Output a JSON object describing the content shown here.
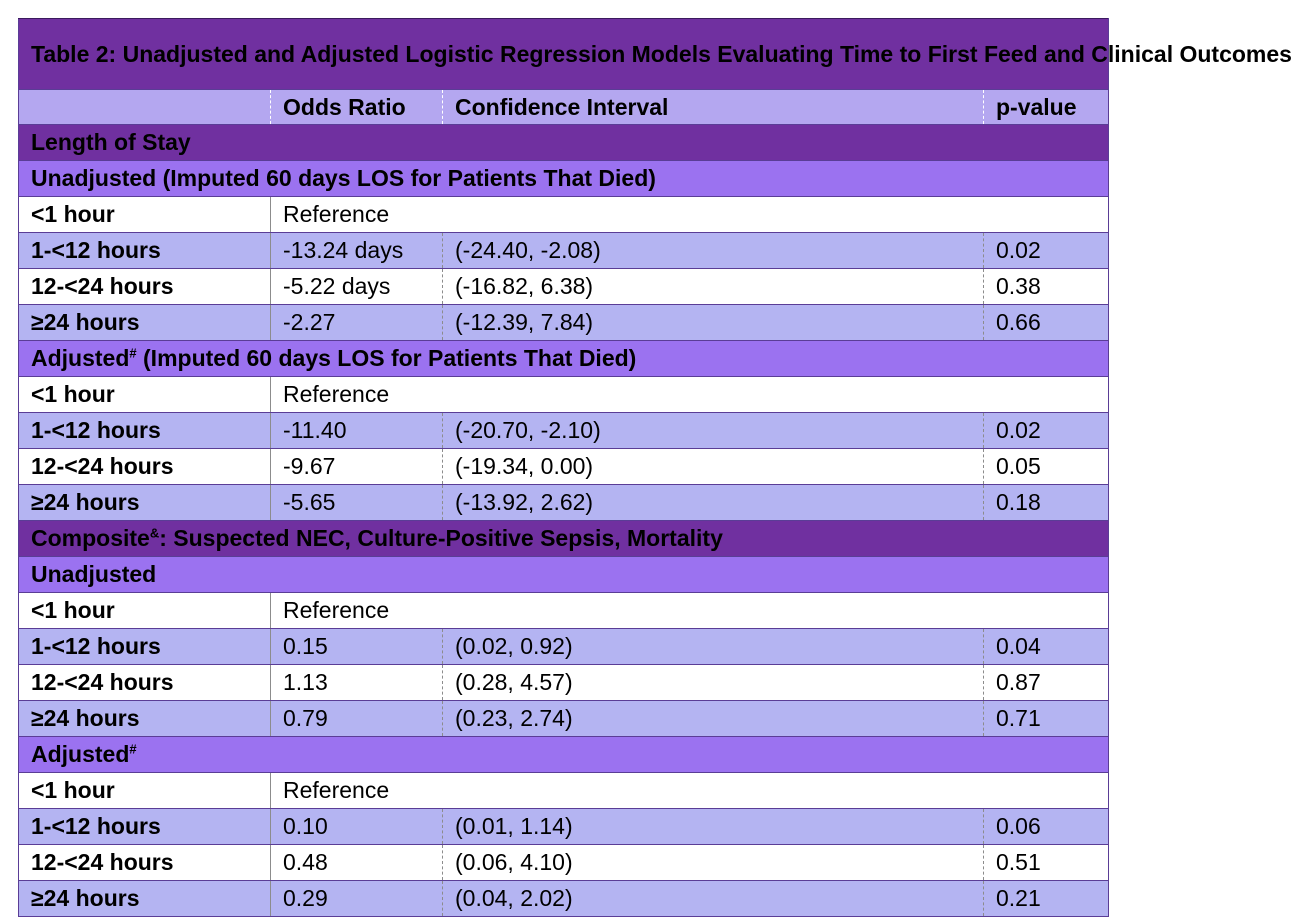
{
  "title": "Table 2: Unadjusted and Adjusted Logistic Regression Models Evaluating Time to First Feed and Clinical Outcomes",
  "headers": [
    "",
    "Odds Ratio",
    "Confidence Interval",
    "p-value"
  ],
  "sections": [
    {
      "title": "Length of Stay",
      "sup": "",
      "title_rest": "",
      "subgroups": [
        {
          "label": "Unadjusted (Imputed 60 days LOS for Patients That Died)",
          "sup": "",
          "label_rest": "",
          "rows": [
            {
              "time": "<1 hour",
              "estimate": "Reference",
              "ci": "",
              "p": ""
            },
            {
              "time": "1-<12 hours",
              "estimate": "-13.24 days",
              "ci": "(-24.40, -2.08)",
              "p": "0.02"
            },
            {
              "time": "12-<24 hours",
              "estimate": "-5.22 days",
              "ci": "(-16.82, 6.38)",
              "p": "0.38"
            },
            {
              "time": "≥24 hours",
              "estimate": "-2.27",
              "ci": "(-12.39, 7.84)",
              "p": "0.66"
            }
          ]
        },
        {
          "label": "Adjusted",
          "sup": "#",
          "label_rest": " (Imputed 60 days LOS for Patients That Died)",
          "rows": [
            {
              "time": "<1 hour",
              "estimate": "Reference",
              "ci": "",
              "p": ""
            },
            {
              "time": "1-<12 hours",
              "estimate": "-11.40",
              "ci": "(-20.70, -2.10)",
              "p": "0.02"
            },
            {
              "time": "12-<24 hours",
              "estimate": "-9.67",
              "ci": "(-19.34, 0.00)",
              "p": "0.05"
            },
            {
              "time": "≥24 hours",
              "estimate": "-5.65",
              "ci": "(-13.92, 2.62)",
              "p": "0.18"
            }
          ]
        }
      ]
    },
    {
      "title": "Composite",
      "sup": "&",
      "title_rest": ": Suspected NEC, Culture-Positive Sepsis, Mortality",
      "subgroups": [
        {
          "label": "Unadjusted",
          "sup": "",
          "label_rest": "",
          "rows": [
            {
              "time": "<1 hour",
              "estimate": "Reference",
              "ci": "",
              "p": ""
            },
            {
              "time": "1-<12 hours",
              "estimate": "0.15",
              "ci": "(0.02, 0.92)",
              "p": "0.04"
            },
            {
              "time": "12-<24 hours",
              "estimate": "1.13",
              "ci": "(0.28, 4.57)",
              "p": "0.87"
            },
            {
              "time": "≥24 hours",
              "estimate": "0.79",
              "ci": "(0.23, 2.74)",
              "p": "0.71"
            }
          ]
        },
        {
          "label": "Adjusted",
          "sup": "#",
          "label_rest": "",
          "rows": [
            {
              "time": "<1 hour",
              "estimate": "Reference",
              "ci": "",
              "p": ""
            },
            {
              "time": "1-<12 hours",
              "estimate": "0.10",
              "ci": "(0.01, 1.14)",
              "p": "0.06"
            },
            {
              "time": "12-<24 hours",
              "estimate": "0.48",
              "ci": "(0.06, 4.10)",
              "p": "0.51"
            },
            {
              "time": "≥24 hours",
              "estimate": "0.29",
              "ci": "(0.04, 2.02)",
              "p": "0.21"
            }
          ]
        }
      ]
    }
  ],
  "colors": {
    "title_bg": "#7030a0",
    "header_bg": "#b4a7f0",
    "section_bg": "#7030a0",
    "subgroup_bg": "#9b72f0",
    "lavender_row": "#b4b4f2",
    "white_row": "#ffffff"
  }
}
